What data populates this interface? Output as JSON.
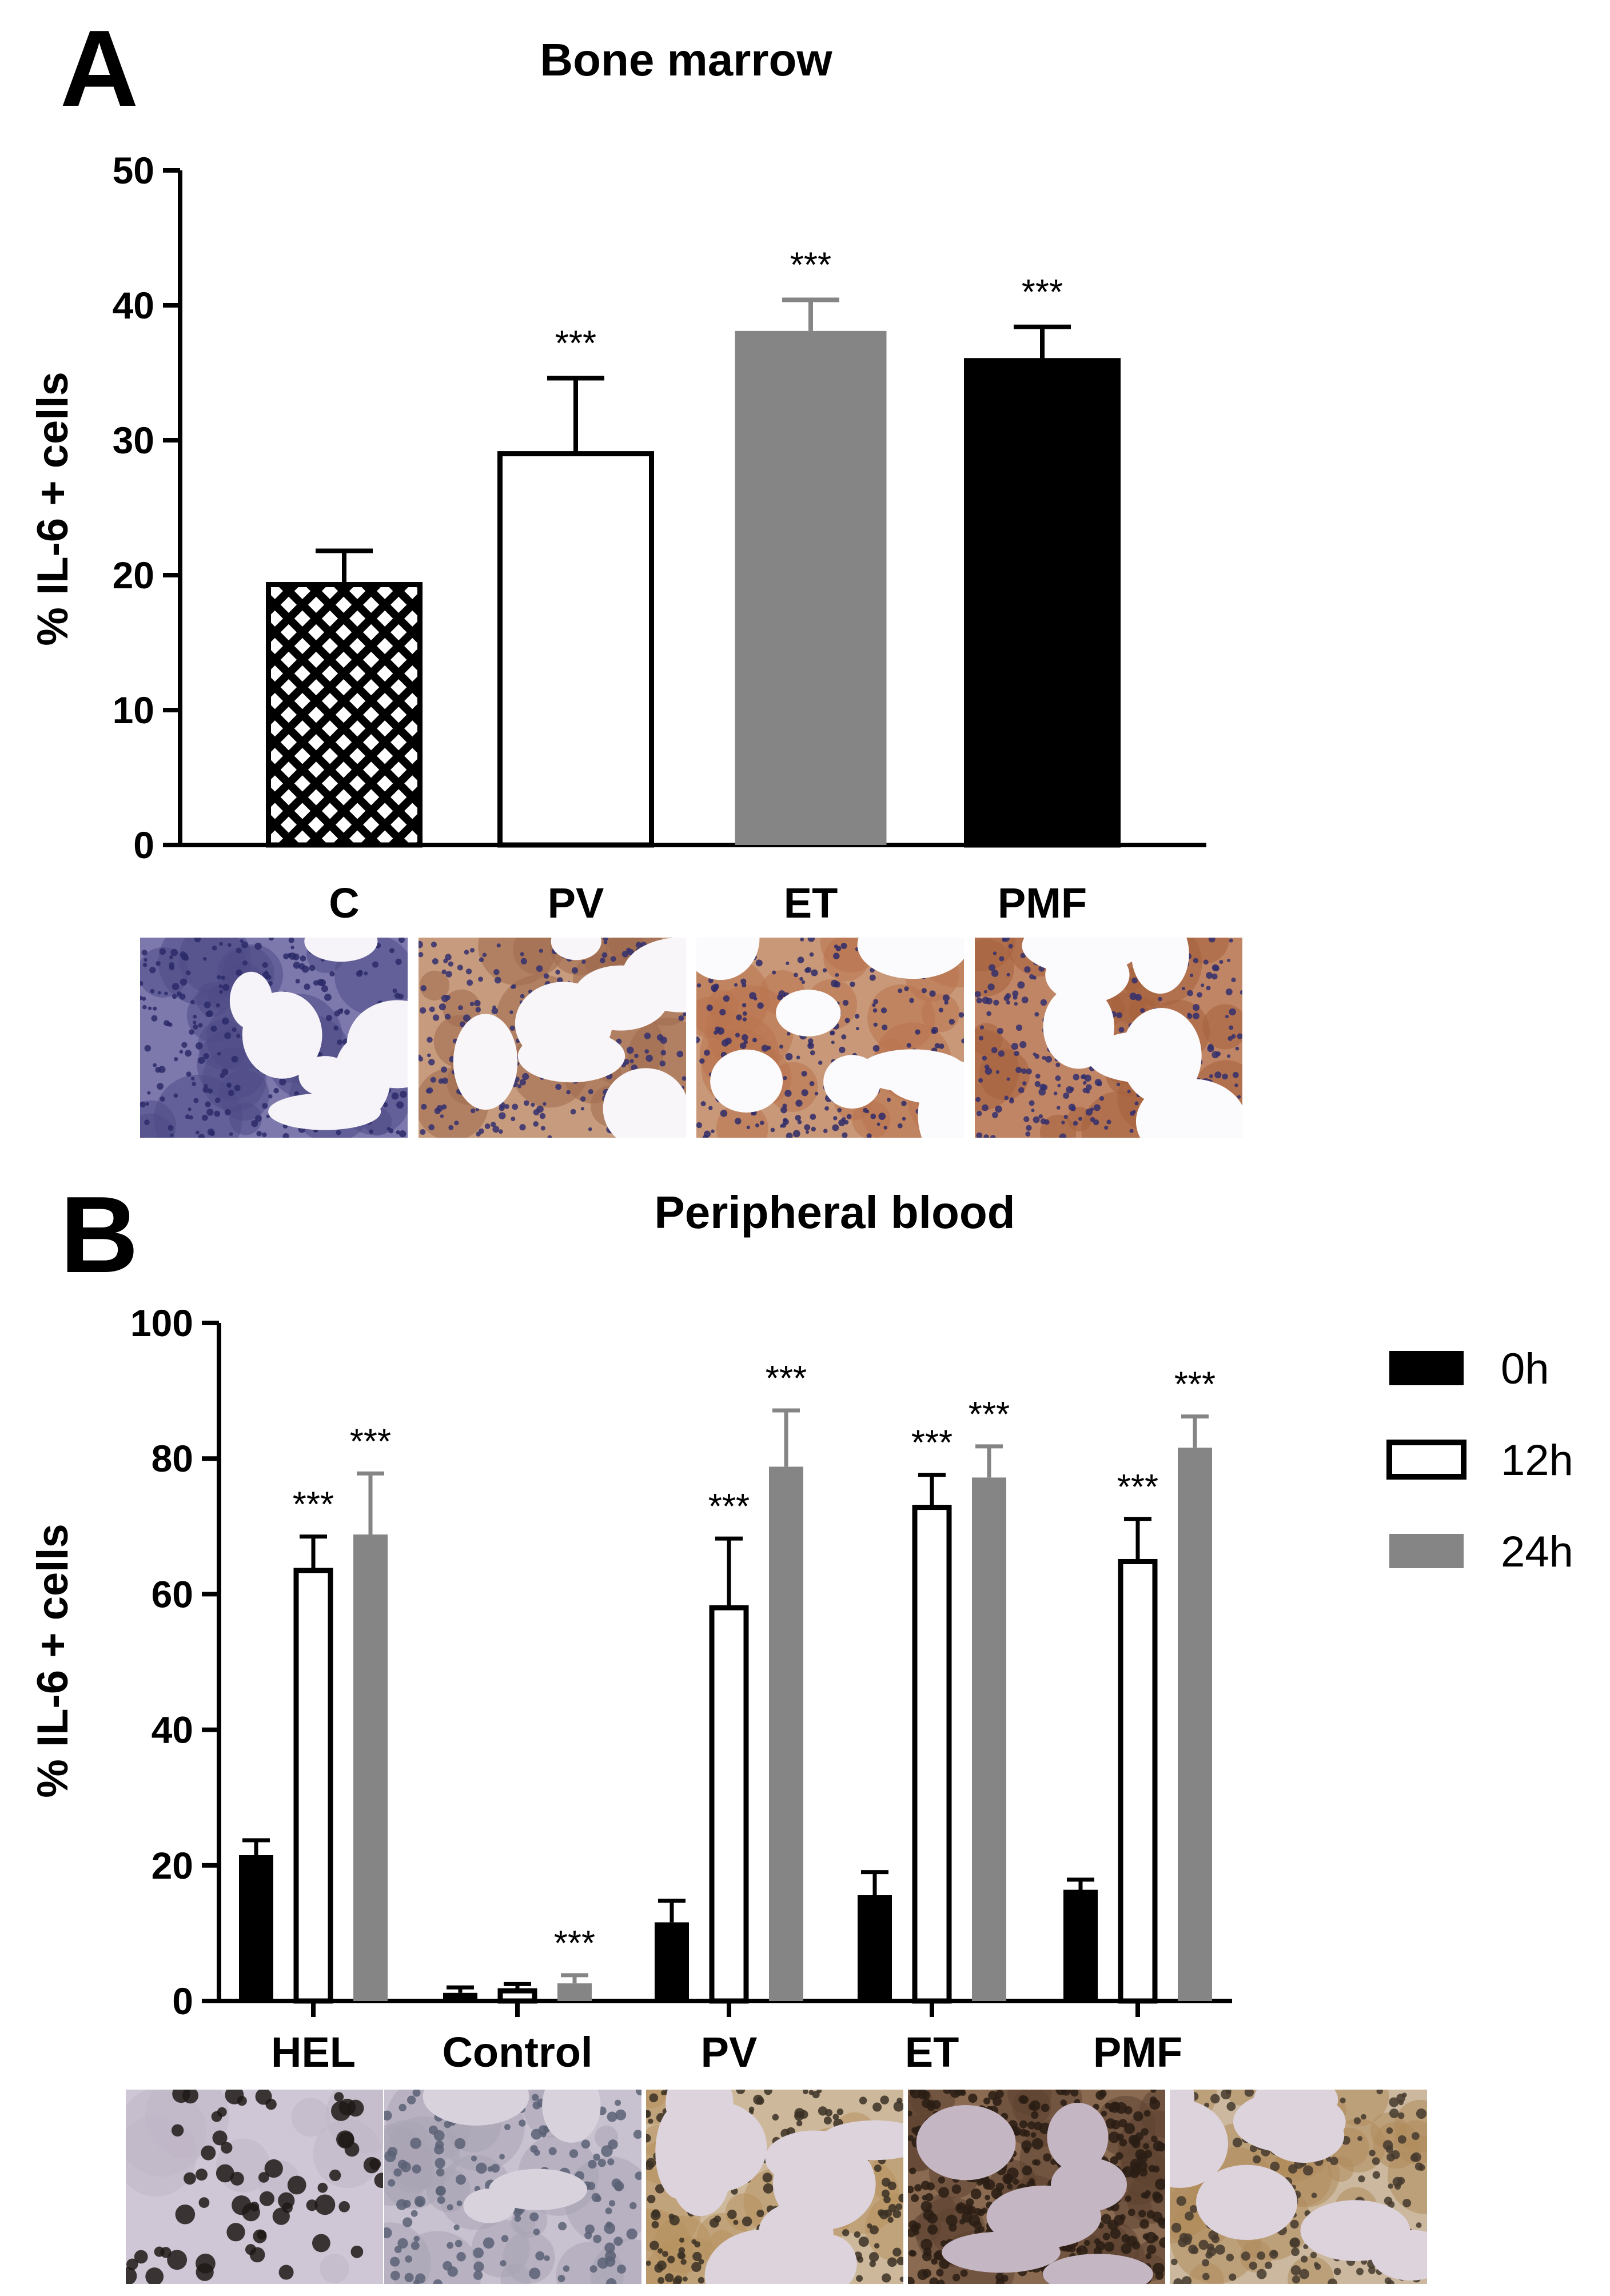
{
  "panel_a": {
    "letter": "A",
    "micrograph_icons": [
      "bone-marrow-c-micrograph-icon",
      "bone-marrow-pv-micrograph-icon",
      "bone-marrow-et-micrograph-icon",
      "bone-marrow-pmf-micrograph-icon"
    ]
  },
  "panel_b": {
    "letter": "B",
    "micrograph_icons": [
      "peripheral-blood-hel-micrograph-icon",
      "peripheral-blood-control-micrograph-icon",
      "peripheral-blood-pv-micrograph-icon",
      "peripheral-blood-et-micrograph-icon",
      "peripheral-blood-pmf-micrograph-icon"
    ]
  },
  "colors": {
    "black": "#000000",
    "gray": "#858585",
    "white": "#ffffff",
    "axis": "#000000"
  },
  "chart_data": [
    {
      "type": "bar",
      "title": "Bone marrow",
      "ylabel": "% IL-6 + cells",
      "xlabel": "",
      "ylim": [
        0,
        50
      ],
      "yticks": [
        "0",
        "10",
        "20",
        "30",
        "40",
        "50"
      ],
      "categories": [
        "C",
        "PV",
        "ET",
        "PMF"
      ],
      "values": [
        19.3,
        29.0,
        38.1,
        35.9
      ],
      "errors": [
        2.5,
        5.6,
        2.3,
        2.5
      ],
      "fills": [
        "crosshatch",
        "white",
        "gray",
        "black"
      ],
      "significance": [
        "",
        "***",
        "***",
        "***"
      ]
    },
    {
      "type": "bar",
      "title": "Peripheral blood",
      "ylabel": "% IL-6 + cells",
      "xlabel": "",
      "ylim": [
        0,
        100
      ],
      "yticks": [
        "0",
        "20",
        "40",
        "60",
        "80",
        "100"
      ],
      "categories": [
        "HEL",
        "Control",
        "PV",
        "ET",
        "PMF"
      ],
      "legend_position": "top-right",
      "series": [
        {
          "name": "0h",
          "fill": "black",
          "values": [
            21.5,
            1.2,
            11.6,
            15.6,
            16.4
          ],
          "errors": [
            2.2,
            0.8,
            3.2,
            3.4,
            1.5
          ],
          "significance": [
            "",
            "",
            "",
            "",
            ""
          ]
        },
        {
          "name": "12h",
          "fill": "white",
          "values": [
            63.5,
            1.5,
            58.0,
            72.8,
            64.8
          ],
          "errors": [
            5.0,
            1.0,
            10.2,
            4.8,
            6.3
          ],
          "significance": [
            "***",
            "",
            "***",
            "***",
            "***"
          ]
        },
        {
          "name": "24h",
          "fill": "gray",
          "values": [
            68.8,
            2.6,
            78.8,
            77.2,
            81.6
          ],
          "errors": [
            9.0,
            1.2,
            8.3,
            4.6,
            4.6
          ],
          "significance": [
            "***",
            "***",
            "***",
            "***",
            "***"
          ]
        }
      ]
    }
  ]
}
